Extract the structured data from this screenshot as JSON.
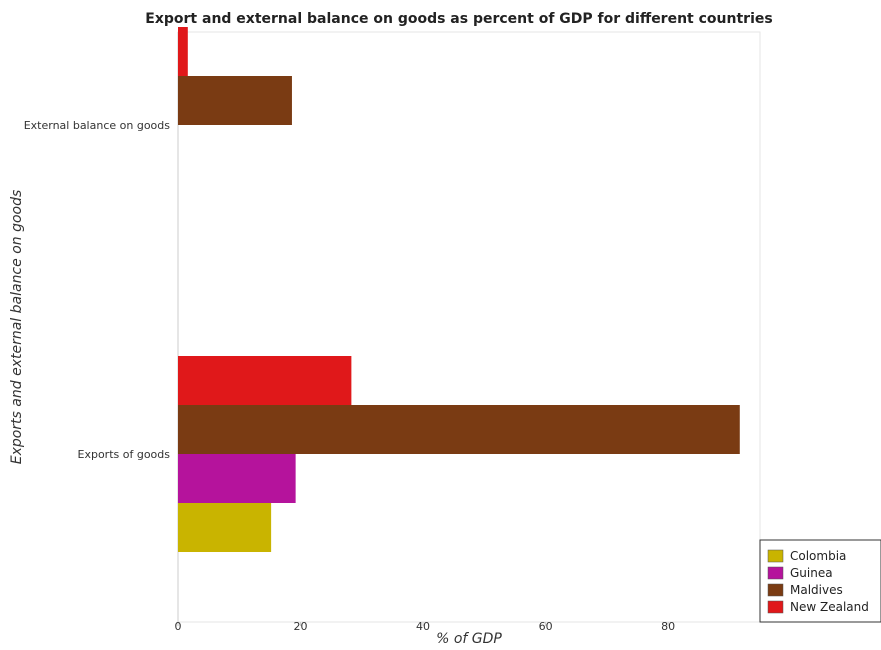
{
  "chart_data": {
    "type": "bar",
    "orientation": "horizontal",
    "title": "Export and external balance on goods as percent of GDP for different countries",
    "xlabel": "% of GDP",
    "ylabel": "Exports and external balance on goods",
    "categories": [
      "Exports of goods",
      "External balance on goods"
    ],
    "xlim": [
      0,
      95
    ],
    "xticks": [
      0,
      20,
      40,
      60,
      80
    ],
    "grid": false,
    "legend_position": "bottom-right",
    "series": [
      {
        "name": "Colombia",
        "color": "#c9b400",
        "values": [
          15.2,
          0
        ]
      },
      {
        "name": "Guinea",
        "color": "#b5139c",
        "values": [
          19.2,
          0
        ]
      },
      {
        "name": "Maldives",
        "color": "#7a3b13",
        "values": [
          91.7,
          18.6
        ]
      },
      {
        "name": "New Zealand",
        "color": "#e0181a",
        "values": [
          28.3,
          1.6
        ]
      }
    ]
  }
}
